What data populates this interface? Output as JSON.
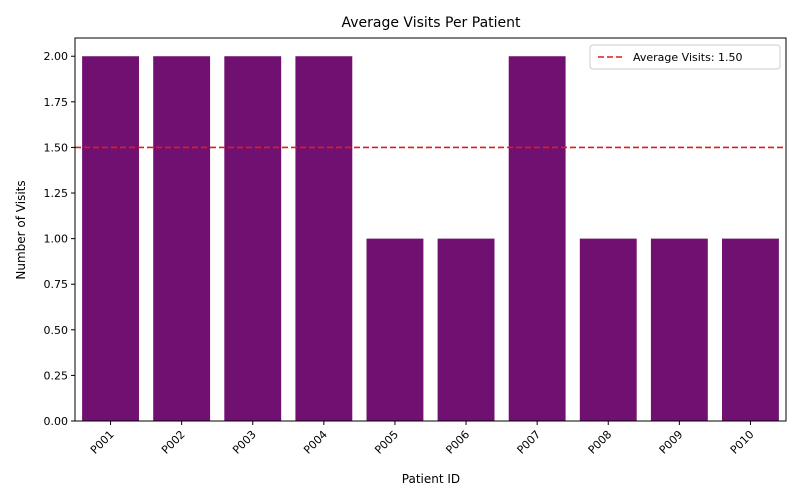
{
  "chart_data": {
    "type": "bar",
    "title": "Average Visits Per Patient",
    "xlabel": "Patient ID",
    "ylabel": "Number of Visits",
    "categories": [
      "P001",
      "P002",
      "P003",
      "P004",
      "P005",
      "P006",
      "P007",
      "P008",
      "P009",
      "P010"
    ],
    "values": [
      2,
      2,
      2,
      2,
      1,
      1,
      2,
      1,
      1,
      1
    ],
    "ylim": [
      0,
      2.1
    ],
    "yticks": [
      "0.00",
      "0.25",
      "0.50",
      "0.75",
      "1.00",
      "1.25",
      "1.50",
      "1.75",
      "2.00"
    ],
    "bar_color": "#701070",
    "reference_line": {
      "value": 1.5,
      "label": "Average Visits: 1.50",
      "color": "#e41a1c",
      "style": "dashed"
    },
    "legend_position": "top-right",
    "grid": false
  }
}
